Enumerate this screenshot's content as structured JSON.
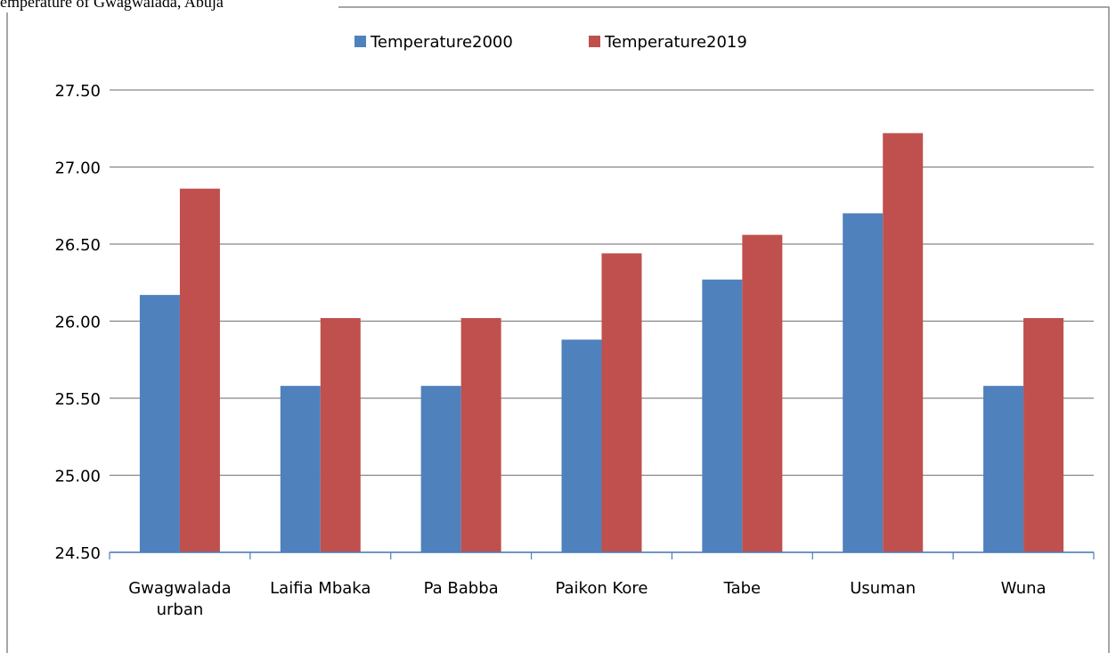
{
  "chart_data": {
    "type": "bar",
    "title": "emperature of Gwagwalada, Abuja",
    "categories": [
      "Gwagwalada urban",
      "Laifia Mbaka",
      "Pa Babba",
      "Paikon Kore",
      "Tabe",
      "Usuman",
      "Wuna"
    ],
    "series": [
      {
        "name": "Temperature2000",
        "color": "#4f81bd",
        "values": [
          26.17,
          25.58,
          25.58,
          25.88,
          26.27,
          26.7,
          25.58
        ]
      },
      {
        "name": "Temperature2019",
        "color": "#c0504d",
        "values": [
          26.86,
          26.02,
          26.02,
          26.44,
          26.56,
          27.22,
          26.02
        ]
      }
    ],
    "ylim": [
      24.5,
      27.5
    ],
    "yticks": [
      {
        "value": 24.5,
        "label": "24.50"
      },
      {
        "value": 25,
        "label": "25.00"
      },
      {
        "value": 25.5,
        "label": "25.50"
      },
      {
        "value": 26,
        "label": "26.00"
      },
      {
        "value": 26.5,
        "label": "26.50"
      },
      {
        "value": 27,
        "label": "27.00"
      },
      {
        "value": 27.5,
        "label": "27.50"
      }
    ],
    "grid": true,
    "legend": "top"
  }
}
